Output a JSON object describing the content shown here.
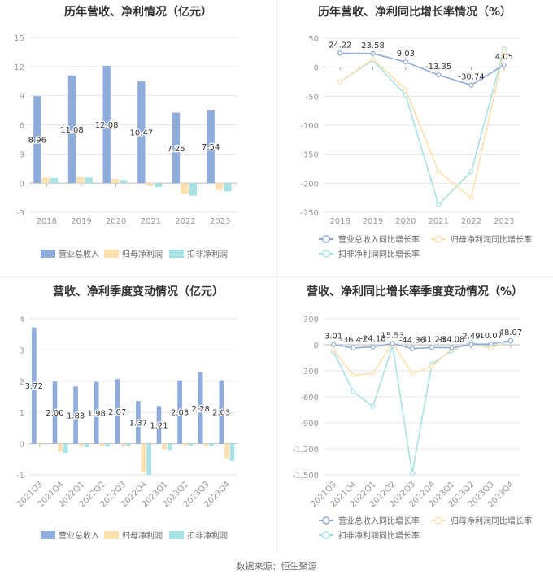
{
  "source": "数据来源：恒生聚源",
  "colors": {
    "revenue": "#8eacdc",
    "net": "#fde0b0",
    "deducted": "#a7e2e4",
    "axis": "#999999",
    "grid": "#e6e6e6",
    "label": "#333333"
  },
  "chart_data": [
    {
      "id": "annual_bar",
      "type": "bar",
      "title": "历年营收、净利情况（亿元）",
      "categories": [
        "2018",
        "2019",
        "2020",
        "2021",
        "2022",
        "2023"
      ],
      "ylim": [
        -3,
        15
      ],
      "yticks": [
        -3,
        0,
        3,
        6,
        9,
        12,
        15
      ],
      "grid": true,
      "legend_position": "bottom",
      "series": [
        {
          "name": "营业总收入",
          "values": [
            8.96,
            11.08,
            12.08,
            10.47,
            7.25,
            7.54
          ],
          "labels": [
            "8.96",
            "11.08",
            "12.08",
            "10.47",
            "7.25",
            "7.54"
          ]
        },
        {
          "name": "归母净利润",
          "values": [
            0.55,
            0.62,
            0.42,
            -0.28,
            -1.1,
            -0.72
          ]
        },
        {
          "name": "扣非净利润",
          "values": [
            0.52,
            0.58,
            0.32,
            -0.42,
            -1.3,
            -0.85
          ]
        }
      ]
    },
    {
      "id": "annual_line",
      "type": "line",
      "title": "历年营收、净利同比增长率情况（%）",
      "categories": [
        "2018",
        "2019",
        "2020",
        "2021",
        "2022",
        "2023"
      ],
      "ylim": [
        -250,
        50
      ],
      "yticks": [
        -250,
        -200,
        -150,
        -100,
        -50,
        0,
        50
      ],
      "grid": true,
      "legend_position": "bottom",
      "series": [
        {
          "name": "营业总收入同比增长率",
          "values": [
            24.22,
            23.58,
            9.03,
            -13.35,
            -30.74,
            4.05
          ],
          "labels": [
            "24.22",
            "23.58",
            "9.03",
            "-13.35",
            "-30.74",
            "4.05"
          ]
        },
        {
          "name": "归母净利润同比增长率",
          "values": [
            -25,
            14,
            -38,
            -180,
            -225,
            28
          ]
        },
        {
          "name": "扣非净利润同比增长率",
          "values": [
            -25,
            12,
            -48,
            -237,
            -180,
            32
          ]
        }
      ]
    },
    {
      "id": "quarter_bar",
      "type": "bar",
      "title": "营收、净利季度变动情况（亿元）",
      "categories": [
        "2021Q3",
        "2021Q4",
        "2022Q1",
        "2022Q2",
        "2022Q3",
        "2022Q4",
        "2023Q1",
        "2023Q2",
        "2023Q3",
        "2023Q4"
      ],
      "ylim": [
        -1,
        4
      ],
      "yticks": [
        -1,
        0,
        1,
        2,
        3,
        4
      ],
      "grid": true,
      "legend_position": "bottom",
      "series": [
        {
          "name": "营业总收入",
          "values": [
            3.72,
            2.0,
            1.83,
            1.98,
            2.07,
            1.37,
            1.21,
            2.03,
            2.28,
            2.03
          ],
          "labels": [
            "3.72",
            "2.00",
            "1.83",
            "1.98",
            "2.07",
            "1.37",
            "1.21",
            "2.03",
            "2.28",
            "2.03"
          ]
        },
        {
          "name": "归母净利润",
          "values": [
            0.02,
            -0.25,
            -0.1,
            -0.08,
            -0.04,
            -0.92,
            -0.18,
            -0.06,
            -0.1,
            -0.48
          ]
        },
        {
          "name": "扣非净利润",
          "values": [
            0.01,
            -0.3,
            -0.12,
            -0.1,
            -0.06,
            -1.0,
            -0.2,
            -0.08,
            -0.09,
            -0.55
          ]
        }
      ]
    },
    {
      "id": "quarter_line",
      "type": "line",
      "title": "营收、净利同比增长率季度变动情况（%）",
      "categories": [
        "2021Q3",
        "2021Q4",
        "2022Q1",
        "2022Q2",
        "2022Q3",
        "2022Q4",
        "2023Q1",
        "2023Q2",
        "2023Q3",
        "2023Q4"
      ],
      "ylim": [
        -1500,
        300
      ],
      "yticks": [
        -1500,
        -1200,
        -900,
        -600,
        -300,
        0,
        300
      ],
      "ytick_labels": [
        "-1,500",
        "-1,200",
        "-900",
        "-600",
        "-300",
        "0",
        "300"
      ],
      "grid": true,
      "legend_position": "bottom",
      "series": [
        {
          "name": "营业总收入同比增长率",
          "values": [
            3.01,
            -36.47,
            -24.18,
            15.53,
            -44.36,
            -31.28,
            -34.08,
            2.49,
            10.07,
            48.07
          ],
          "labels": [
            "3.01",
            "-36.47",
            "-24.18",
            "15.53",
            "-44.36",
            "-31.28",
            "-34.08",
            "2.49",
            "10.07",
            "48.07"
          ]
        },
        {
          "name": "归母净利润同比增长率",
          "values": [
            -60,
            -350,
            -330,
            20,
            -330,
            -250,
            -50,
            10,
            -40,
            50
          ]
        },
        {
          "name": "扣非净利润同比增长率",
          "values": [
            -80,
            -540,
            -710,
            -10,
            -1480,
            -220,
            -70,
            30,
            -30,
            40
          ]
        }
      ]
    }
  ]
}
